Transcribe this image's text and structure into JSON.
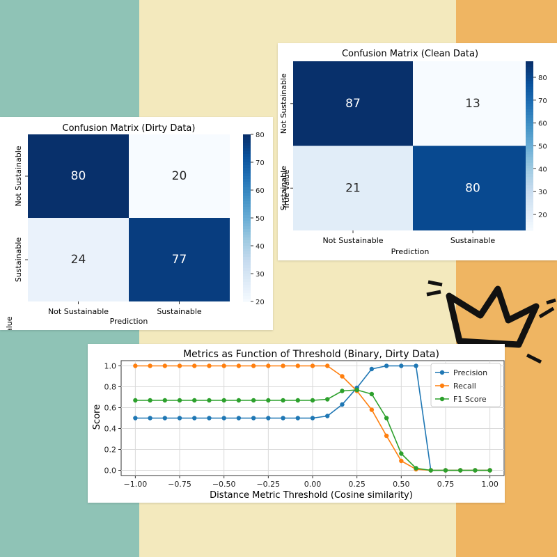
{
  "colors": {
    "stripe_left": "#8fc3b6",
    "stripe_mid": "#f3e9bd",
    "stripe_right": "#efb562",
    "precision": "#1f77b4",
    "recall": "#ff7f0e",
    "f1": "#2ca02c"
  },
  "chart_data": [
    {
      "type": "heatmap",
      "title": "Confusion Matrix (Dirty Data)",
      "xlabel": "Prediction",
      "ylabel": "True Value",
      "x_categories": [
        "Not Sustainable",
        "Sustainable"
      ],
      "y_categories": [
        "Not Sustainable",
        "Sustainable"
      ],
      "values": [
        [
          80,
          20
        ],
        [
          24,
          77
        ]
      ],
      "colorbar": {
        "ticks": [
          20,
          30,
          40,
          50,
          60,
          70,
          80
        ],
        "range": [
          20,
          80
        ]
      },
      "colormap": "Blues"
    },
    {
      "type": "heatmap",
      "title": "Confusion Matrix (Clean Data)",
      "xlabel": "Prediction",
      "ylabel": "True Value",
      "x_categories": [
        "Not Sustainable",
        "Sustainable"
      ],
      "y_categories": [
        "Not Sustainable",
        "Sustainable"
      ],
      "values": [
        [
          87,
          13
        ],
        [
          21,
          80
        ]
      ],
      "colorbar": {
        "ticks": [
          20,
          30,
          40,
          50,
          60,
          70,
          80
        ],
        "range": [
          13,
          87
        ]
      },
      "colormap": "Blues"
    },
    {
      "type": "line",
      "title": "Metrics as Function of Threshold (Binary, Dirty Data)",
      "xlabel": "Distance Metric Threshold (Cosine similarity)",
      "ylabel": "Score",
      "xlim": [
        -1.0,
        1.0
      ],
      "ylim": [
        0.0,
        1.0
      ],
      "xticks": [
        "-1.00",
        "-0.75",
        "-0.50",
        "-0.25",
        "0.00",
        "0.25",
        "0.50",
        "0.75",
        "1.00"
      ],
      "yticks": [
        "0.0",
        "0.2",
        "0.4",
        "0.6",
        "0.8",
        "1.0"
      ],
      "grid": true,
      "legend": "upper-right",
      "x": [
        -1.0,
        -0.9167,
        -0.8333,
        -0.75,
        -0.6667,
        -0.5833,
        -0.5,
        -0.4167,
        -0.3333,
        -0.25,
        -0.1667,
        -0.0833,
        0.0,
        0.0833,
        0.1667,
        0.25,
        0.3333,
        0.4167,
        0.5,
        0.5833,
        0.6667,
        0.75,
        0.8333,
        0.9167,
        1.0
      ],
      "series": [
        {
          "name": "Precision",
          "values": [
            0.5,
            0.5,
            0.5,
            0.5,
            0.5,
            0.5,
            0.5,
            0.5,
            0.5,
            0.5,
            0.5,
            0.5,
            0.5,
            0.52,
            0.63,
            0.79,
            0.97,
            1.0,
            1.0,
            1.0,
            0.0,
            0.0,
            0.0,
            0.0,
            0.0
          ]
        },
        {
          "name": "Recall",
          "values": [
            1.0,
            1.0,
            1.0,
            1.0,
            1.0,
            1.0,
            1.0,
            1.0,
            1.0,
            1.0,
            1.0,
            1.0,
            1.0,
            1.0,
            0.9,
            0.76,
            0.58,
            0.33,
            0.09,
            0.01,
            0.0,
            0.0,
            0.0,
            0.0,
            0.0
          ]
        },
        {
          "name": "F1 Score",
          "values": [
            0.67,
            0.67,
            0.67,
            0.67,
            0.67,
            0.67,
            0.67,
            0.67,
            0.67,
            0.67,
            0.67,
            0.67,
            0.67,
            0.68,
            0.76,
            0.77,
            0.73,
            0.5,
            0.16,
            0.02,
            0.0,
            0.0,
            0.0,
            0.0,
            0.0
          ]
        }
      ]
    }
  ]
}
